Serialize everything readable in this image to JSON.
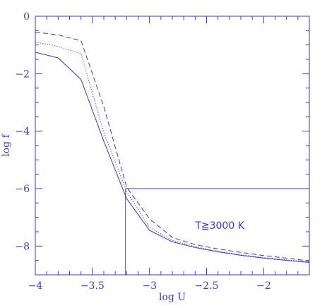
{
  "chart_data": {
    "type": "line",
    "title": "",
    "xlabel": "log U",
    "ylabel": "log f",
    "xlim": [
      -4,
      -1.6
    ],
    "ylim": [
      -9,
      0
    ],
    "xticks": [
      {
        "value": -4,
        "label": "−4"
      },
      {
        "value": -3.5,
        "label": "−3.5"
      },
      {
        "value": -3,
        "label": "−3"
      },
      {
        "value": -2.5,
        "label": "−2.5"
      },
      {
        "value": -2,
        "label": "−2"
      }
    ],
    "yticks": [
      {
        "value": 0,
        "label": "0"
      },
      {
        "value": -2,
        "label": "−2"
      },
      {
        "value": -4,
        "label": "−4"
      },
      {
        "value": -6,
        "label": "−6"
      },
      {
        "value": -8,
        "label": "−8"
      }
    ],
    "series": [
      {
        "style": "solid",
        "x": [
          -4.0,
          -3.8,
          -3.6,
          -3.4,
          -3.2,
          -3.0,
          -2.8,
          -2.6,
          -2.4,
          -2.2,
          -2.0,
          -1.8,
          -1.6
        ],
        "y": [
          -1.25,
          -1.45,
          -2.2,
          -4.35,
          -6.35,
          -7.45,
          -7.85,
          -8.05,
          -8.2,
          -8.32,
          -8.42,
          -8.5,
          -8.57
        ]
      },
      {
        "style": "dotted",
        "x": [
          -4.0,
          -3.8,
          -3.6,
          -3.4,
          -3.2,
          -3.0,
          -2.8,
          -2.6,
          -2.4,
          -2.2,
          -2.0,
          -1.8,
          -1.6
        ],
        "y": [
          -0.9,
          -1.05,
          -1.3,
          -4.05,
          -6.1,
          -7.35,
          -7.8,
          -8.02,
          -8.18,
          -8.3,
          -8.4,
          -8.48,
          -8.55
        ]
      },
      {
        "style": "dashed",
        "x": [
          -4.0,
          -3.8,
          -3.6,
          -3.4,
          -3.2,
          -3.0,
          -2.8,
          -2.6,
          -2.4,
          -2.2,
          -2.0,
          -1.8,
          -1.6
        ],
        "y": [
          -0.55,
          -0.65,
          -0.85,
          -3.15,
          -5.95,
          -7.05,
          -7.7,
          -7.95,
          -8.1,
          -8.22,
          -8.33,
          -8.42,
          -8.52
        ]
      }
    ],
    "guides": {
      "vertical_x": -3.21,
      "horizontal_y": -6.0
    },
    "annotations": [
      {
        "text": "T≧3000 K",
        "x": -2.6,
        "y": -7.4
      }
    ],
    "grid": false,
    "legend": "none",
    "color": "#3a3acc"
  }
}
